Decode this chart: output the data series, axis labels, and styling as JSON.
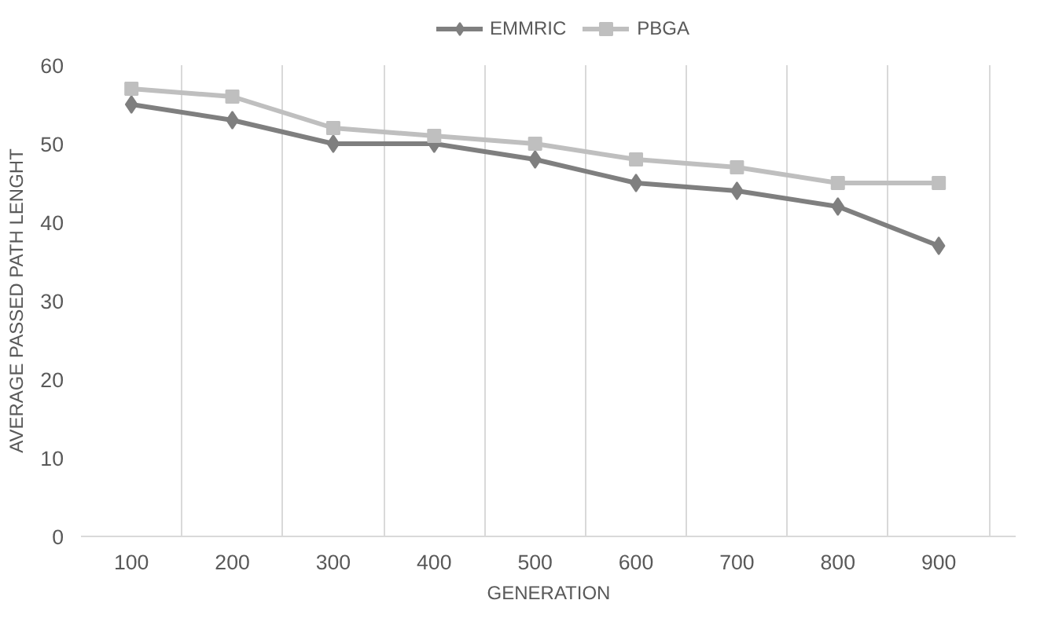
{
  "chart_data": {
    "type": "line",
    "xlabel": "GENERATION",
    "ylabel": "AVERAGE PASSED PATH LENGHT",
    "categories": [
      "100",
      "200",
      "300",
      "400",
      "500",
      "600",
      "700",
      "800",
      "900"
    ],
    "series": [
      {
        "name": "EMMRIC",
        "color": "#7f7f7f",
        "marker": "diamond",
        "values": [
          55,
          53,
          50,
          50,
          48,
          45,
          44,
          42,
          37
        ]
      },
      {
        "name": "PBGA",
        "color": "#bfbfbf",
        "marker": "square",
        "values": [
          57,
          56,
          52,
          51,
          50,
          48,
          47,
          45,
          45
        ]
      }
    ],
    "ylim": [
      0,
      60
    ],
    "yticks": [
      0,
      10,
      20,
      30,
      40,
      50,
      60
    ],
    "grid": "x",
    "legend": "top",
    "line_style": "solid"
  }
}
